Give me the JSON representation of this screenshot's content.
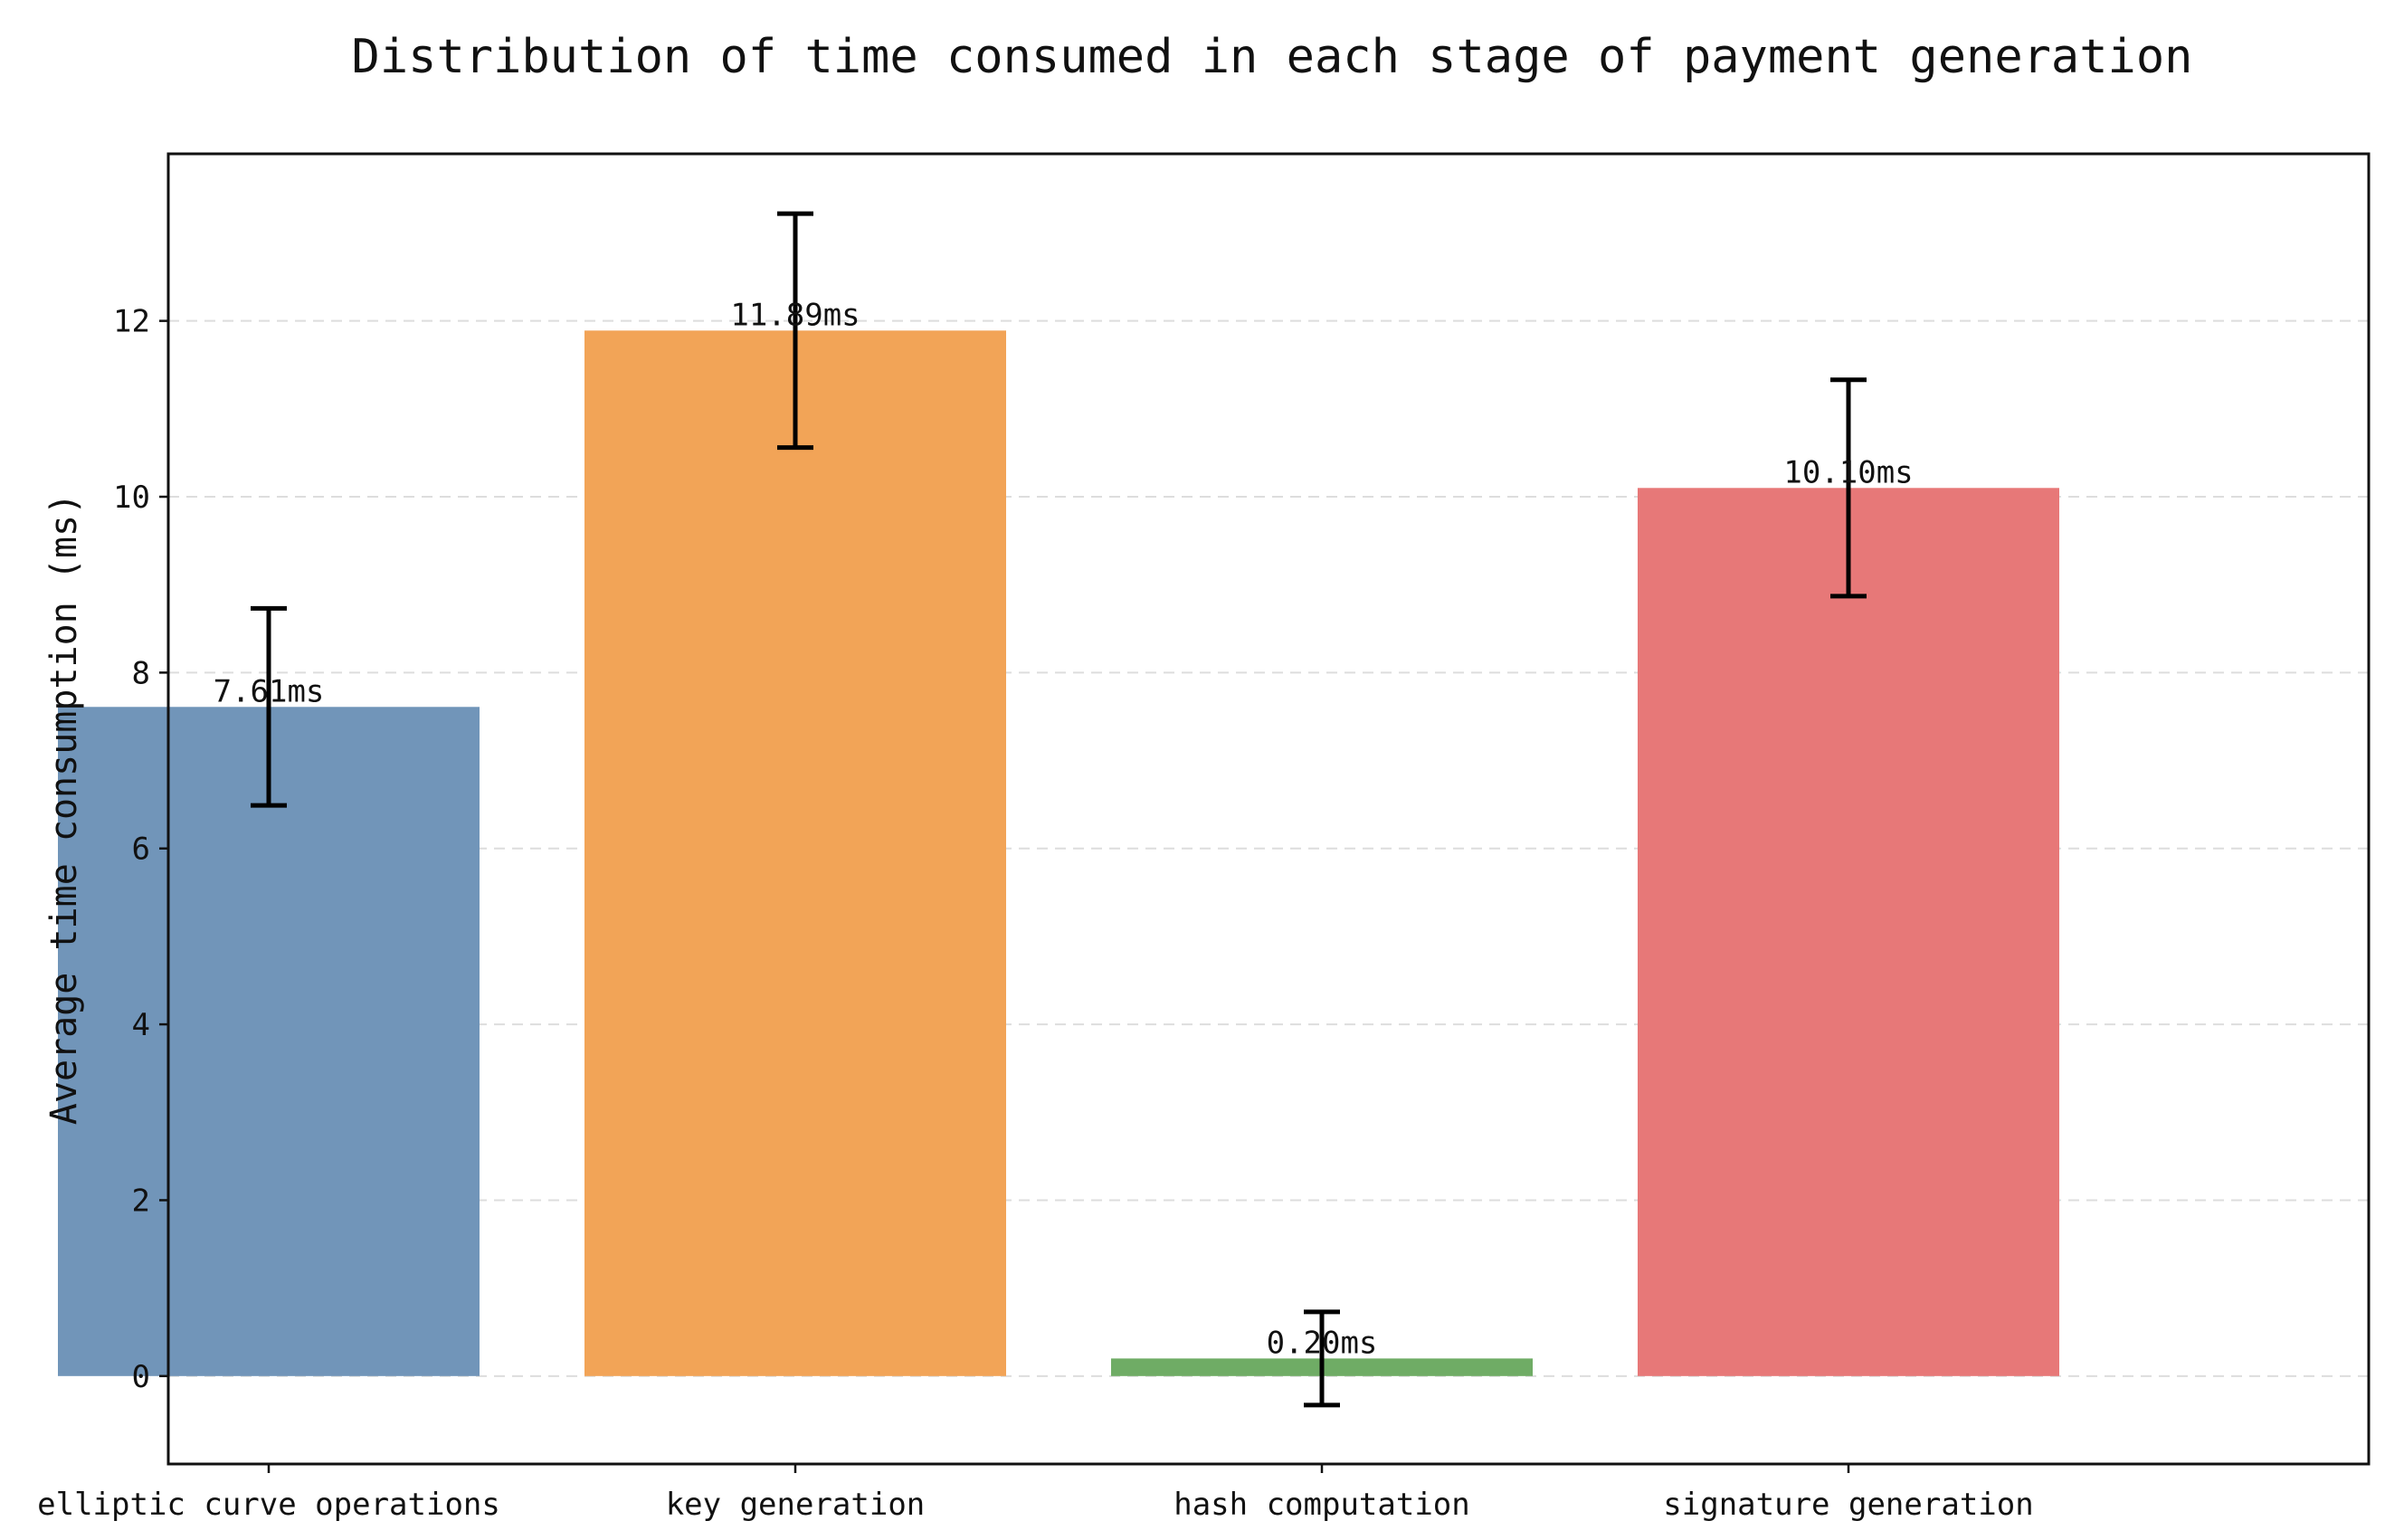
{
  "chart_data": {
    "type": "bar",
    "title": "Distribution of time consumed in each stage of payment generation",
    "xlabel": "",
    "ylabel": "Average time consumption (ms)",
    "categories": [
      "elliptic curve operations",
      "key generation",
      "hash computation",
      "signature generation"
    ],
    "values": [
      7.61,
      11.89,
      0.2,
      10.1
    ],
    "errors": [
      1.12,
      1.33,
      0.53,
      1.23
    ],
    "data_labels": [
      "7.61ms",
      "11.89ms",
      "0.20ms",
      "10.10ms"
    ],
    "colors": [
      "#7195b9",
      "#f2a457",
      "#6fac65",
      "#e77878"
    ],
    "ylim": [
      -1,
      13.9
    ],
    "yticks": [
      0,
      2,
      4,
      6,
      8,
      10,
      12
    ],
    "grid": "y-dashed",
    "legend": "none"
  }
}
